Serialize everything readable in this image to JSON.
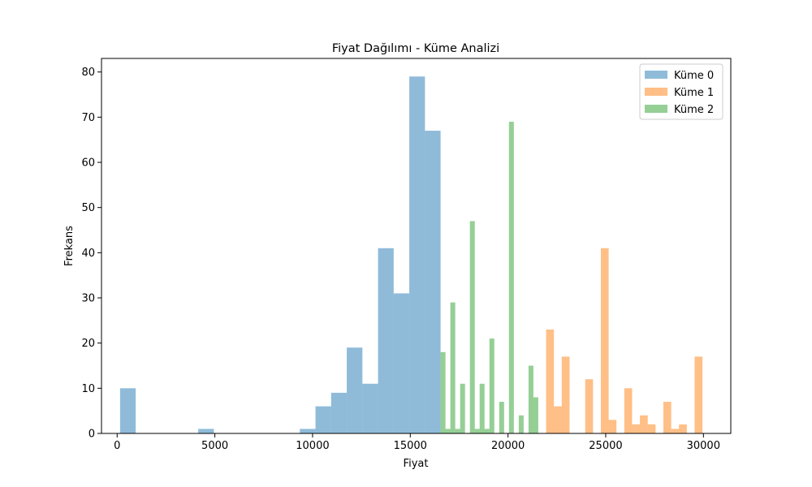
{
  "chart_data": {
    "type": "bar",
    "title": "Fiyat Dağılımı - Küme Analizi",
    "xlabel": "Fiyat",
    "ylabel": "Frekans",
    "xlim": [
      -800,
      31400
    ],
    "ylim": [
      0,
      83
    ],
    "x_ticks": [
      0,
      5000,
      10000,
      15000,
      20000,
      25000,
      30000
    ],
    "y_ticks": [
      0,
      10,
      20,
      30,
      40,
      50,
      60,
      70,
      80
    ],
    "legend_position": "top-right",
    "series": [
      {
        "name": "Küme 0",
        "color": "#1f77b4",
        "opacity": 0.5,
        "bins": [
          {
            "x0": 150,
            "x1": 950,
            "count": 10
          },
          {
            "x0": 4150,
            "x1": 4950,
            "count": 1
          },
          {
            "x0": 9350,
            "x1": 10150,
            "count": 1
          },
          {
            "x0": 10150,
            "x1": 10950,
            "count": 6
          },
          {
            "x0": 10950,
            "x1": 11750,
            "count": 9
          },
          {
            "x0": 11750,
            "x1": 12550,
            "count": 19
          },
          {
            "x0": 12550,
            "x1": 13350,
            "count": 11
          },
          {
            "x0": 13350,
            "x1": 14150,
            "count": 41
          },
          {
            "x0": 14150,
            "x1": 14950,
            "count": 31
          },
          {
            "x0": 14950,
            "x1": 15750,
            "count": 79
          },
          {
            "x0": 15750,
            "x1": 16550,
            "count": 67
          }
        ]
      },
      {
        "name": "Küme 1",
        "color": "#ff7f0e",
        "opacity": 0.5,
        "bins": [
          {
            "x0": 21950,
            "x1": 22350,
            "count": 23
          },
          {
            "x0": 22350,
            "x1": 22750,
            "count": 6
          },
          {
            "x0": 22750,
            "x1": 23150,
            "count": 17
          },
          {
            "x0": 23950,
            "x1": 24350,
            "count": 12
          },
          {
            "x0": 24750,
            "x1": 25150,
            "count": 41
          },
          {
            "x0": 25150,
            "x1": 25550,
            "count": 3
          },
          {
            "x0": 25950,
            "x1": 26350,
            "count": 10
          },
          {
            "x0": 26350,
            "x1": 26750,
            "count": 2
          },
          {
            "x0": 26750,
            "x1": 27150,
            "count": 4
          },
          {
            "x0": 27150,
            "x1": 27550,
            "count": 2
          },
          {
            "x0": 27950,
            "x1": 28350,
            "count": 7
          },
          {
            "x0": 28350,
            "x1": 28750,
            "count": 1
          },
          {
            "x0": 28750,
            "x1": 29150,
            "count": 2
          },
          {
            "x0": 29550,
            "x1": 29950,
            "count": 17
          }
        ]
      },
      {
        "name": "Küme 2",
        "color": "#2ca02c",
        "opacity": 0.5,
        "bins": [
          {
            "x0": 16550,
            "x1": 16800,
            "count": 18
          },
          {
            "x0": 16800,
            "x1": 17050,
            "count": 1
          },
          {
            "x0": 17050,
            "x1": 17300,
            "count": 29
          },
          {
            "x0": 17300,
            "x1": 17550,
            "count": 1
          },
          {
            "x0": 17550,
            "x1": 17800,
            "count": 11
          },
          {
            "x0": 18050,
            "x1": 18300,
            "count": 47
          },
          {
            "x0": 18300,
            "x1": 18550,
            "count": 1
          },
          {
            "x0": 18550,
            "x1": 18800,
            "count": 11
          },
          {
            "x0": 18800,
            "x1": 19050,
            "count": 1
          },
          {
            "x0": 19050,
            "x1": 19300,
            "count": 21
          },
          {
            "x0": 19550,
            "x1": 19800,
            "count": 7
          },
          {
            "x0": 20050,
            "x1": 20300,
            "count": 69
          },
          {
            "x0": 20550,
            "x1": 20800,
            "count": 4
          },
          {
            "x0": 21050,
            "x1": 21300,
            "count": 15
          },
          {
            "x0": 21300,
            "x1": 21550,
            "count": 8
          }
        ]
      }
    ]
  }
}
